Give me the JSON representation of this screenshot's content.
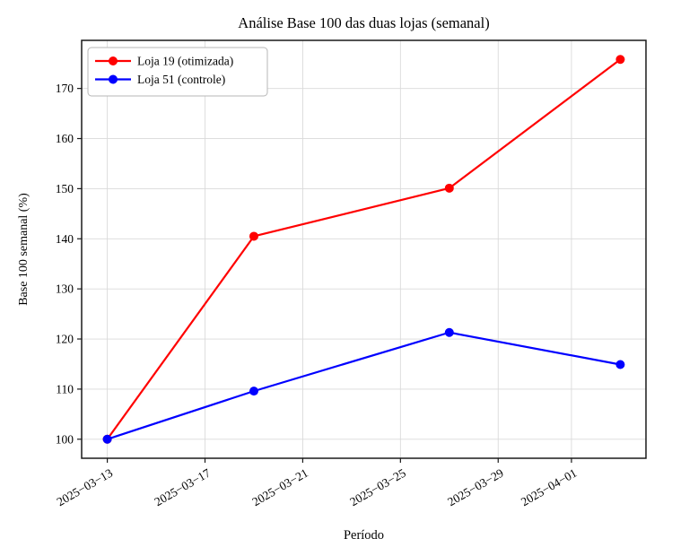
{
  "chart_data": {
    "type": "line",
    "title": "Análise Base 100 das duas lojas (semanal)",
    "xlabel": "Período",
    "ylabel": "Base 100 semanal (%)",
    "x": [
      "2025-03-13",
      "2025-03-19",
      "2025-03-27",
      "2025-04-03"
    ],
    "series": [
      {
        "name": "Loja 19 (otimizada)",
        "color": "#ff0000",
        "marker": "circle",
        "values": [
          100.0,
          140.5,
          150.1,
          175.8
        ]
      },
      {
        "name": "Loja 51 (controle)",
        "color": "#0000ff",
        "marker": "circle",
        "values": [
          100.0,
          109.6,
          121.3,
          114.9
        ]
      }
    ],
    "xticks": [
      {
        "date": "2025-03-13",
        "label": "2025−03−13"
      },
      {
        "date": "2025-03-17",
        "label": "2025−03−17"
      },
      {
        "date": "2025-03-21",
        "label": "2025−03−21"
      },
      {
        "date": "2025-03-25",
        "label": "2025−03−25"
      },
      {
        "date": "2025-03-29",
        "label": "2025−03−29"
      },
      {
        "date": "2025-04-01",
        "label": "2025−04−01"
      }
    ],
    "yticks": [
      100,
      110,
      120,
      130,
      140,
      150,
      160,
      170
    ],
    "ylim": [
      96.2,
      179.6
    ],
    "xlim_days": [
      -1.05,
      22.05
    ],
    "grid": true,
    "legend_position": "upper left",
    "background": "#ffffff",
    "grid_color": "#dadada",
    "spine_color": "#1a1a1a",
    "text_color": "#000000"
  }
}
